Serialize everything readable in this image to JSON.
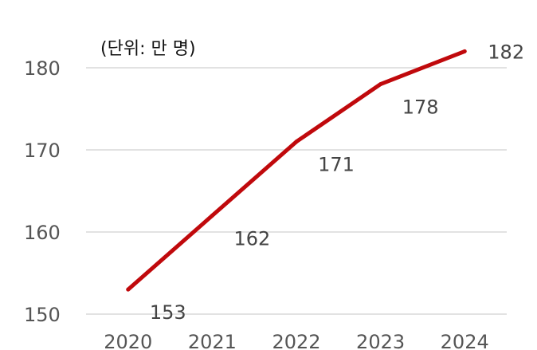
{
  "chart_data": {
    "type": "line",
    "unit_label": "(단위: 만 명)",
    "title": "",
    "xlabel": "",
    "ylabel": "",
    "categories": [
      "2020",
      "2021",
      "2022",
      "2023",
      "2024"
    ],
    "series": [
      {
        "values": [
          153,
          162,
          171,
          178,
          182
        ],
        "color": "#c0090c"
      }
    ],
    "data_labels": [
      "153",
      "162",
      "171",
      "178",
      "182"
    ],
    "ylim": [
      150,
      180
    ],
    "yticks": [
      150,
      160,
      170,
      180
    ],
    "ytick_labels": [
      "150",
      "160",
      "170",
      "180"
    ],
    "grid": "horizontal",
    "gridline_color": "#d9d9d9",
    "legend": "none"
  }
}
